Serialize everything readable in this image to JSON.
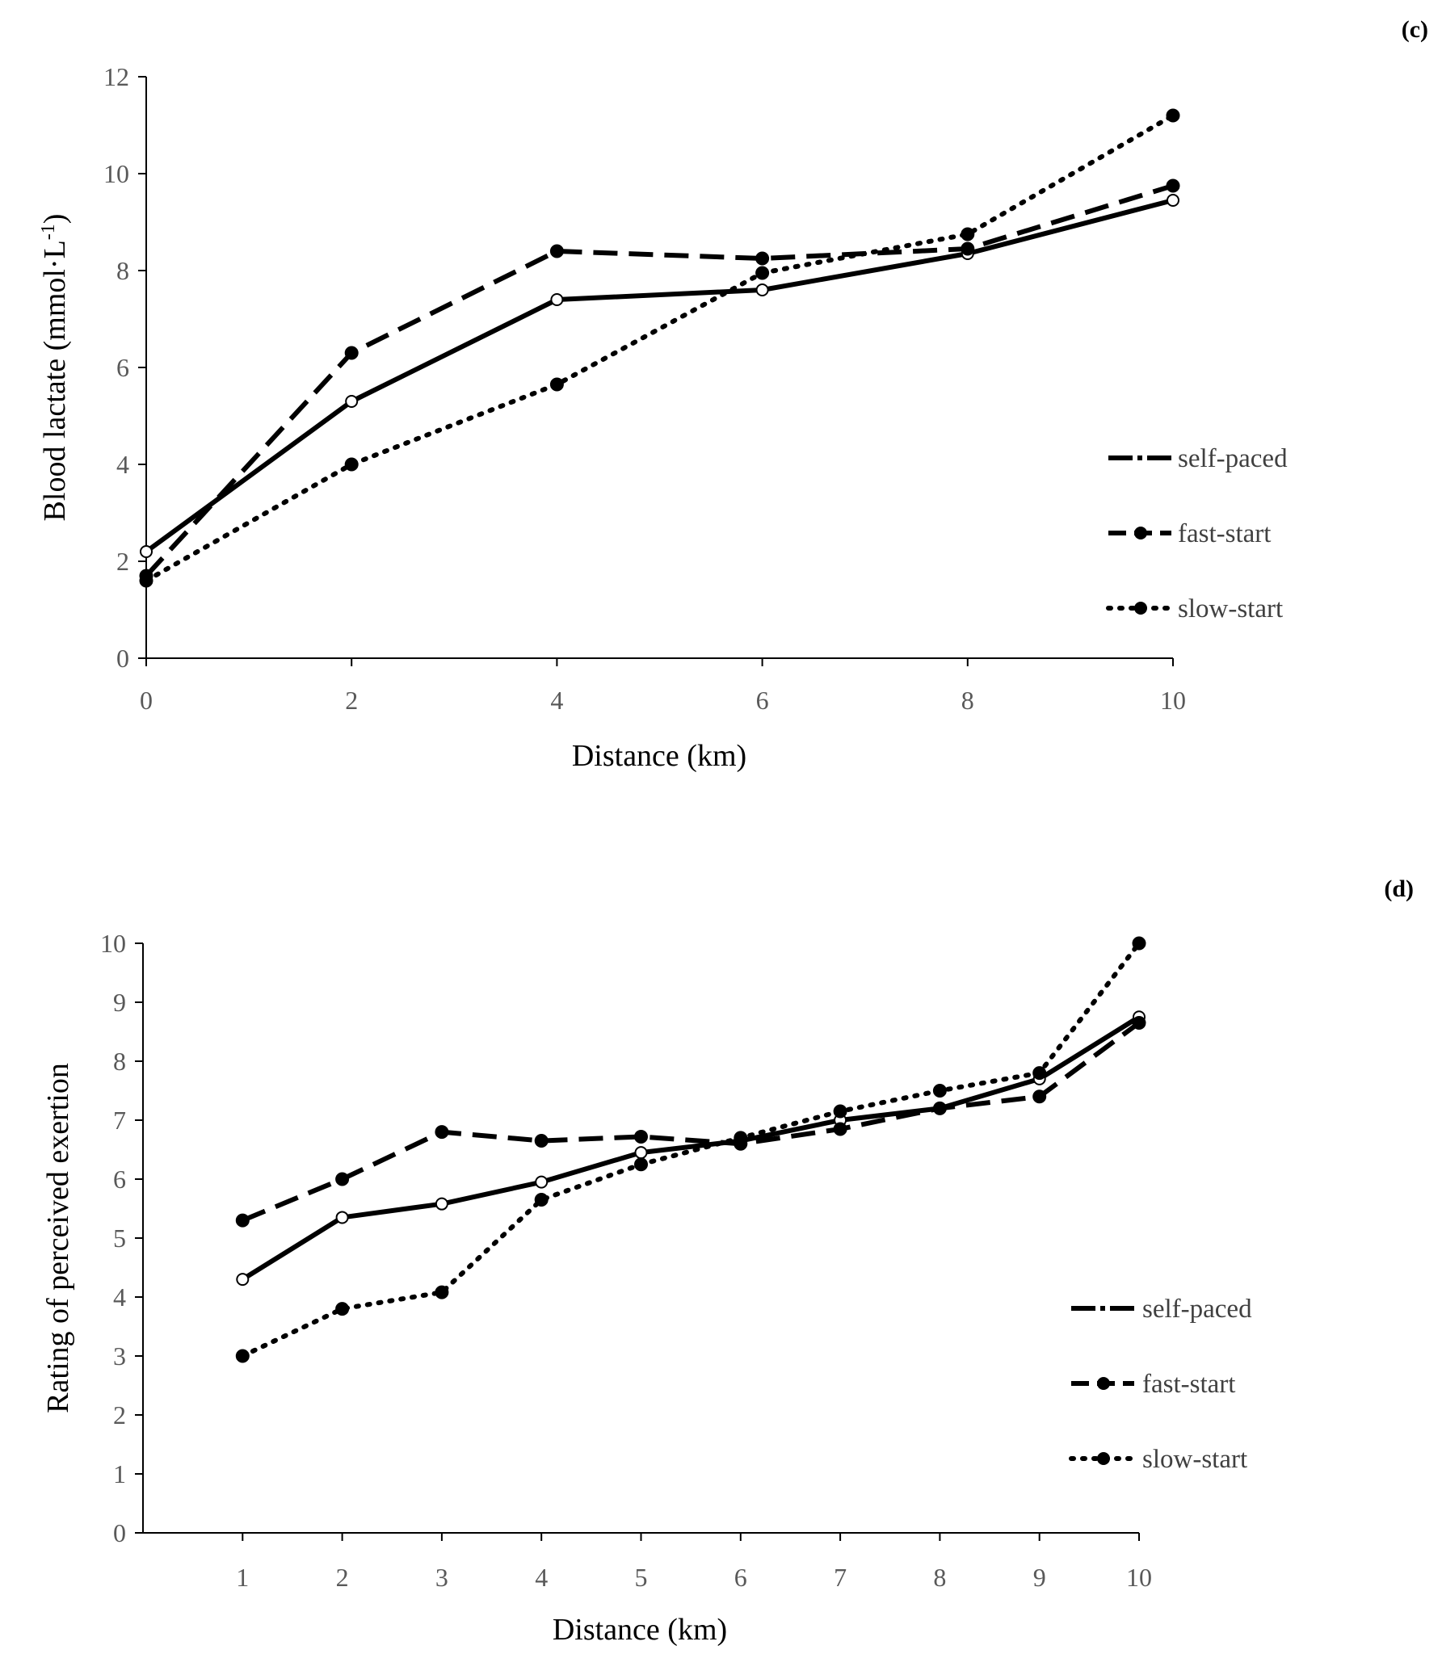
{
  "chart_data": [
    {
      "type": "line",
      "panel_label": "(c)",
      "title": "",
      "xlabel": "Distance (km)",
      "ylabel_main": "Blood lactate (mmol·L",
      "ylabel_sup": "-1",
      "ylabel_close": ")",
      "x": [
        0,
        2,
        4,
        6,
        8,
        10
      ],
      "xlim": [
        0,
        10
      ],
      "xticks": [
        0,
        2,
        4,
        6,
        8,
        10
      ],
      "ylim": [
        0,
        12
      ],
      "yticks": [
        0,
        2,
        4,
        6,
        8,
        10,
        12
      ],
      "series": [
        {
          "name": "self-paced",
          "style": "solid",
          "marker": "open",
          "values": [
            2.2,
            5.3,
            7.4,
            7.6,
            8.35,
            9.45
          ]
        },
        {
          "name": "fast-start",
          "style": "dashed",
          "marker": "filled",
          "values": [
            1.7,
            6.3,
            8.4,
            8.25,
            8.45,
            9.75
          ]
        },
        {
          "name": "slow-start",
          "style": "dotted",
          "marker": "filled",
          "values": [
            1.6,
            4.0,
            5.65,
            7.95,
            8.75,
            11.2
          ]
        }
      ],
      "legend_position": "right"
    },
    {
      "type": "line",
      "panel_label": "(d)",
      "title": "",
      "xlabel": "Distance (km)",
      "ylabel_main": "Rating of perceived exertion",
      "x": [
        1,
        2,
        3,
        4,
        5,
        6,
        7,
        8,
        9,
        10
      ],
      "xlim": [
        0,
        10
      ],
      "xticks": [
        1,
        2,
        3,
        4,
        5,
        6,
        7,
        8,
        9,
        10
      ],
      "ylim": [
        0,
        10
      ],
      "yticks": [
        0,
        1,
        2,
        3,
        4,
        5,
        6,
        7,
        8,
        9,
        10
      ],
      "series": [
        {
          "name": "self-paced",
          "style": "solid",
          "marker": "open",
          "values": [
            4.3,
            5.35,
            5.58,
            5.95,
            6.45,
            6.65,
            7.0,
            7.2,
            7.7,
            8.75
          ]
        },
        {
          "name": "fast-start",
          "style": "dashed",
          "marker": "filled",
          "values": [
            5.3,
            6.0,
            6.8,
            6.65,
            6.72,
            6.6,
            6.85,
            7.2,
            7.4,
            8.65
          ]
        },
        {
          "name": "slow-start",
          "style": "dotted",
          "marker": "filled",
          "values": [
            3.0,
            3.8,
            4.08,
            5.65,
            6.25,
            6.7,
            7.15,
            7.5,
            7.8,
            10.0
          ]
        }
      ],
      "legend_position": "right"
    }
  ]
}
